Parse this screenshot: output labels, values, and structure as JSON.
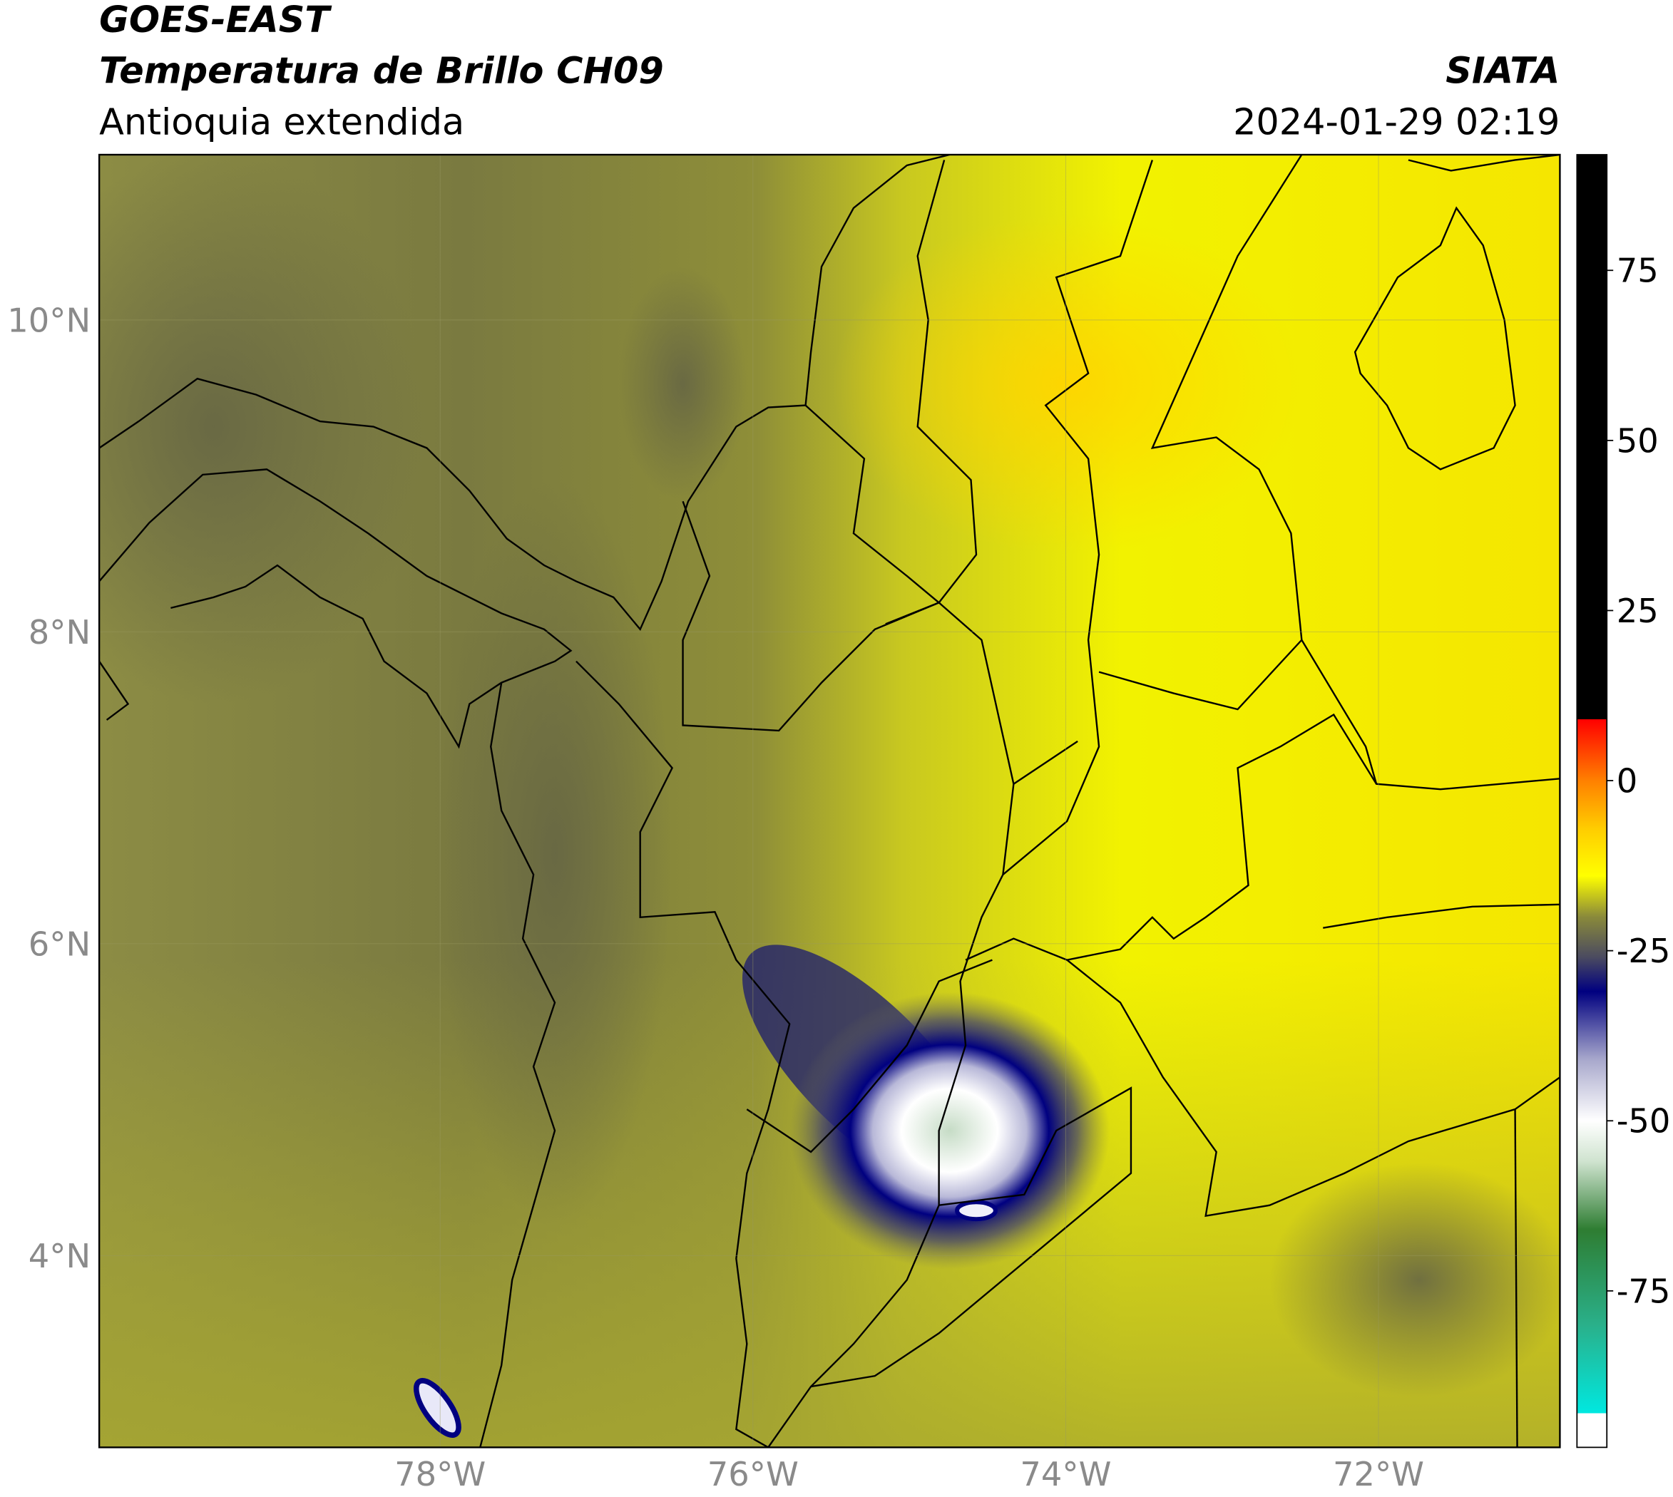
{
  "header": {
    "title": "GOES-EAST",
    "product": "Temperatura de Brillo CH09",
    "region": "Antioquia extendida",
    "source": "SIATA",
    "datetime": "2024-01-29 02:19"
  },
  "map": {
    "xlim": [
      -80.18,
      -70.84
    ],
    "ylim": [
      2.77,
      11.06
    ],
    "grid": true,
    "xticks": [
      {
        "value": -78,
        "label": "78°W"
      },
      {
        "value": -76,
        "label": "76°W"
      },
      {
        "value": -74,
        "label": "74°W"
      },
      {
        "value": -72,
        "label": "72°W"
      }
    ],
    "yticks": [
      {
        "value": 4,
        "label": "4°N"
      },
      {
        "value": 6,
        "label": "6°N"
      },
      {
        "value": 8,
        "label": "8°N"
      },
      {
        "value": 10,
        "label": "10°N"
      }
    ]
  },
  "colorbar": {
    "range": [
      -98,
      92
    ],
    "ticks": [
      75,
      50,
      25,
      0,
      -25,
      -50,
      -75
    ],
    "stops": [
      {
        "value": -98,
        "color": "#ffffff"
      },
      {
        "value": -93,
        "color": "#ffffff"
      },
      {
        "value": -93,
        "color": "#00e8e0"
      },
      {
        "value": -80,
        "color": "#2ab08a"
      },
      {
        "value": -66,
        "color": "#2e7d32"
      },
      {
        "value": -56,
        "color": "#cfe3cf"
      },
      {
        "value": -50,
        "color": "#ffffff"
      },
      {
        "value": -41,
        "color": "#a8a8cc"
      },
      {
        "value": -31,
        "color": "#000080"
      },
      {
        "value": -26,
        "color": "#4a4a60"
      },
      {
        "value": -20,
        "color": "#8a8a3a"
      },
      {
        "value": -14,
        "color": "#ffff00"
      },
      {
        "value": -7,
        "color": "#ffcc00"
      },
      {
        "value": 0,
        "color": "#ff8000"
      },
      {
        "value": 9,
        "color": "#ff0000"
      },
      {
        "value": 9,
        "color": "#000000"
      },
      {
        "value": 92,
        "color": "#000000"
      }
    ]
  }
}
